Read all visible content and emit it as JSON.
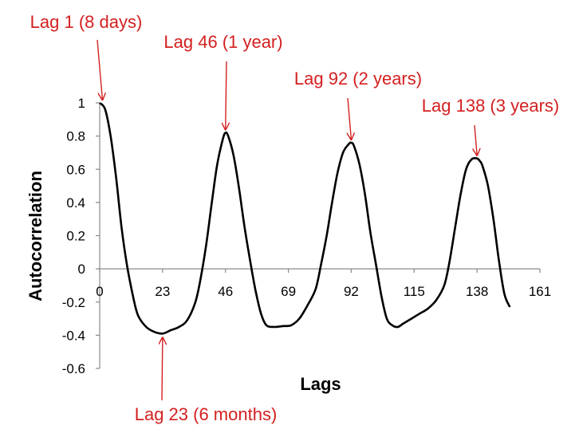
{
  "chart_data": {
    "type": "line",
    "xlabel": "Lags",
    "ylabel": "Autocorrelation",
    "xlim": [
      0,
      161
    ],
    "ylim": [
      -0.6,
      1
    ],
    "x_ticks": [
      0,
      23,
      46,
      69,
      92,
      115,
      138,
      161
    ],
    "x_tick_labels": [
      "0",
      "23",
      "46",
      "69",
      "92",
      "115",
      "138",
      "161"
    ],
    "y_ticks": [
      1,
      0.8,
      0.6,
      0.4,
      0.2,
      0,
      -0.2,
      -0.4,
      -0.6
    ],
    "y_tick_labels": [
      "1",
      "0.8",
      "0.6",
      "0.4",
      "0.2",
      "0",
      "-0.2",
      "-0.4",
      "-0.6"
    ],
    "grid": false,
    "legend": "none",
    "series": [
      {
        "x": [
          0,
          2,
          4,
          6,
          8,
          10,
          12,
          14,
          17,
          20,
          23,
          26,
          29,
          32,
          35,
          37,
          39,
          41,
          43,
          45,
          46,
          47,
          49,
          51,
          53,
          55,
          57,
          59,
          61,
          64,
          67,
          70,
          73,
          76,
          79,
          81,
          83,
          85,
          87,
          89,
          91,
          92,
          93,
          95,
          97,
          99,
          101,
          103,
          105,
          107,
          109,
          111,
          114,
          117,
          120,
          123,
          126,
          128,
          130,
          132,
          134,
          136,
          138,
          139,
          140,
          142,
          144,
          146,
          148,
          150
        ],
        "y": [
          1.0,
          0.96,
          0.8,
          0.55,
          0.25,
          0.02,
          -0.15,
          -0.28,
          -0.35,
          -0.38,
          -0.39,
          -0.37,
          -0.35,
          -0.31,
          -0.2,
          -0.05,
          0.15,
          0.4,
          0.63,
          0.78,
          0.82,
          0.8,
          0.68,
          0.48,
          0.25,
          0.05,
          -0.13,
          -0.27,
          -0.34,
          -0.35,
          -0.345,
          -0.34,
          -0.3,
          -0.22,
          -0.12,
          0.03,
          0.2,
          0.4,
          0.58,
          0.7,
          0.75,
          0.76,
          0.74,
          0.63,
          0.45,
          0.22,
          0.03,
          -0.16,
          -0.3,
          -0.34,
          -0.35,
          -0.33,
          -0.3,
          -0.27,
          -0.24,
          -0.19,
          -0.1,
          0.05,
          0.25,
          0.45,
          0.6,
          0.66,
          0.665,
          0.65,
          0.62,
          0.5,
          0.3,
          0.05,
          -0.15,
          -0.23
        ],
        "color": "#000000"
      }
    ],
    "annotations": [
      {
        "text": "Lag 1 (8 days)",
        "x": 1,
        "y": 1,
        "side": "above"
      },
      {
        "text": "Lag 46 (1 year)",
        "x": 46,
        "y": 0.82,
        "side": "above"
      },
      {
        "text": "Lag 92 (2 years)",
        "x": 92,
        "y": 0.76,
        "side": "above"
      },
      {
        "text": "Lag 138  (3 years)",
        "x": 138,
        "y": 0.665,
        "side": "above"
      },
      {
        "text": "Lag 23 (6 months)",
        "x": 23,
        "y": -0.39,
        "side": "below"
      }
    ],
    "annotation_color": "#d42020"
  }
}
